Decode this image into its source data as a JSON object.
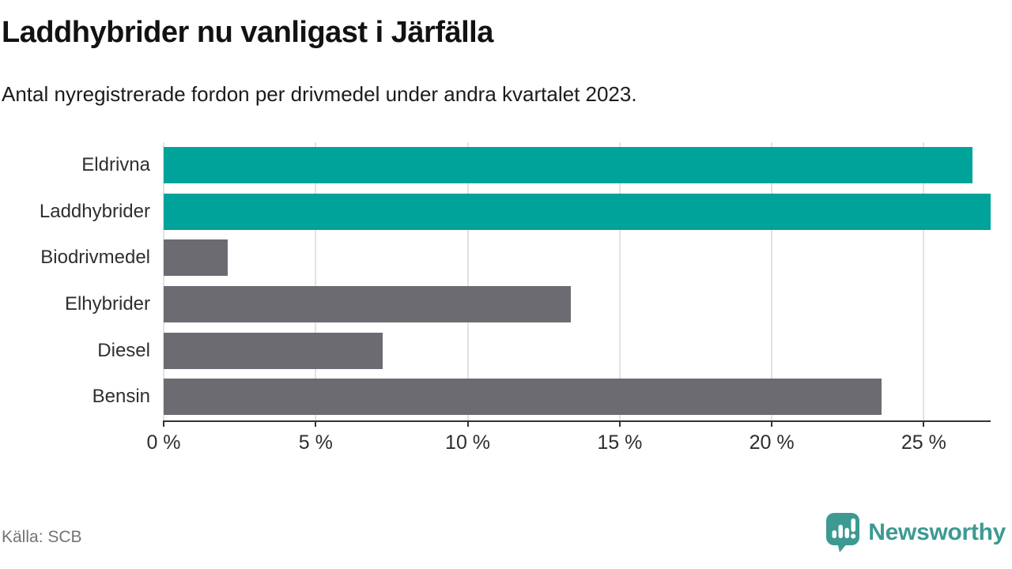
{
  "header": {
    "title": "Laddhybrider nu vanligast i Järfälla",
    "subtitle": "Antal nyregistrerade fordon per drivmedel under andra kvartalet 2023."
  },
  "footer": {
    "source": "Källa: SCB",
    "brand_name": "Newsworthy",
    "brand_icon": "newsworthy-speech-bubble-chart-icon"
  },
  "colors": {
    "highlight_bar": "#00A399",
    "default_bar": "#6C6B71",
    "gridline": "#E2E2E2",
    "axis": "#333333",
    "brand_teal": "#3C9A93"
  },
  "chart_data": {
    "type": "bar",
    "orientation": "horizontal",
    "title": "Laddhybrider nu vanligast i Järfälla",
    "subtitle": "Antal nyregistrerade fordon per drivmedel under andra kvartalet 2023.",
    "categories": [
      "Eldrivna",
      "Laddhybrider",
      "Biodrivmedel",
      "Elhybrider",
      "Diesel",
      "Bensin"
    ],
    "values": [
      26.6,
      27.2,
      2.1,
      13.4,
      7.2,
      23.6
    ],
    "unit": "%",
    "bar_colors": [
      "#00A399",
      "#00A399",
      "#6C6B71",
      "#6C6B71",
      "#6C6B71",
      "#6C6B71"
    ],
    "highlighted_categories": [
      "Eldrivna",
      "Laddhybrider"
    ],
    "xlabel": "",
    "ylabel": "",
    "xlim": [
      0,
      27.2
    ],
    "xticks": [
      0,
      5,
      10,
      15,
      20,
      25
    ],
    "xtick_labels": [
      "0 %",
      "5 %",
      "10 %",
      "15 %",
      "20 %",
      "25 %"
    ],
    "grid": "vertical",
    "legend": "none"
  }
}
